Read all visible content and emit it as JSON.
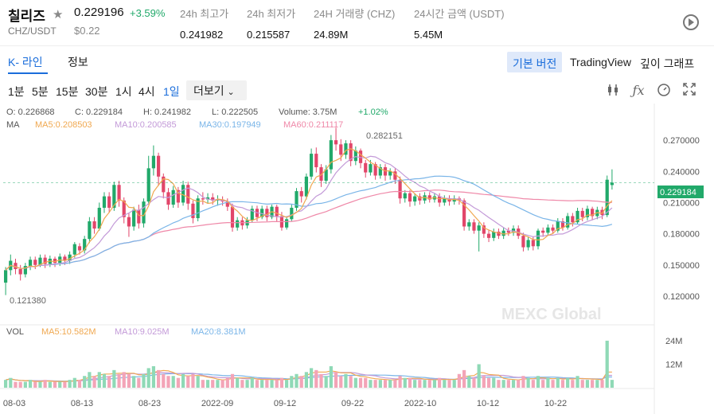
{
  "header": {
    "name": "칠리즈",
    "pair": "CHZ/USDT",
    "price": "0.229196",
    "change": "+3.59%",
    "fiat_price": "$0.22",
    "stats": [
      {
        "label": "24h 최고가",
        "value": "0.241982"
      },
      {
        "label": "24h 최저가",
        "value": "0.215587"
      },
      {
        "label": "24H 거래량 (CHZ)",
        "value": "24.89M"
      },
      {
        "label": "24시간 금액 (USDT)",
        "value": "5.45M"
      }
    ]
  },
  "tabs": {
    "kline": "K- 라인",
    "info": "정보"
  },
  "views": {
    "basic": "기본 버전",
    "tradingview": "TradingView",
    "depth": "깊이 그래프"
  },
  "intervals": [
    "1분",
    "5분",
    "15분",
    "30분",
    "1시",
    "4시",
    "1일"
  ],
  "active_interval": "1일",
  "more_label": "더보기",
  "ohlc": {
    "open": "O: 0.226868",
    "close": "C: 0.229184",
    "high": "H: 0.241982",
    "low": "L: 0.222505",
    "volume": "Volume: 3.75M",
    "change": "+1.02%"
  },
  "ma": {
    "label": "MA",
    "ma5": "MA5:0.208503",
    "ma10": "MA10:0.200585",
    "ma30": "MA30:0.197949",
    "ma60": "MA60:0.211117"
  },
  "vol": {
    "label": "VOL",
    "ma5": "MA5:10.582M",
    "ma10": "MA10:9.025M",
    "ma20": "MA20:8.381M"
  },
  "chart_data": {
    "type": "candlestick",
    "price_axis": {
      "ticks": [
        "0.270000",
        "0.240000",
        "0.210000",
        "0.180000",
        "0.150000",
        "0.120000"
      ],
      "values": [
        0.27,
        0.24,
        0.21,
        0.18,
        0.15,
        0.12
      ]
    },
    "volume_axis": {
      "ticks": [
        "24M",
        "12M"
      ],
      "values": [
        24,
        12
      ]
    },
    "x_ticks": [
      "08-03",
      "08-13",
      "08-23",
      "2022-09",
      "09-12",
      "09-22",
      "2022-10",
      "10-12",
      "10-22"
    ],
    "current_price_label": "0.229184",
    "high_marker": "0.282151",
    "low_marker": "0.121380",
    "watermark": "MEXC Global",
    "candles": [
      [
        0.133,
        0.145,
        0.121,
        0.148,
        4
      ],
      [
        0.145,
        0.154,
        0.14,
        0.16,
        5
      ],
      [
        0.152,
        0.146,
        0.141,
        0.156,
        3
      ],
      [
        0.146,
        0.141,
        0.135,
        0.15,
        3
      ],
      [
        0.141,
        0.149,
        0.138,
        0.152,
        3
      ],
      [
        0.149,
        0.155,
        0.145,
        0.158,
        4
      ],
      [
        0.155,
        0.15,
        0.146,
        0.158,
        3
      ],
      [
        0.15,
        0.157,
        0.148,
        0.16,
        3
      ],
      [
        0.157,
        0.151,
        0.147,
        0.16,
        4
      ],
      [
        0.151,
        0.156,
        0.148,
        0.159,
        3
      ],
      [
        0.156,
        0.152,
        0.148,
        0.158,
        3
      ],
      [
        0.152,
        0.158,
        0.149,
        0.161,
        3
      ],
      [
        0.158,
        0.154,
        0.15,
        0.16,
        3
      ],
      [
        0.154,
        0.16,
        0.151,
        0.163,
        4
      ],
      [
        0.16,
        0.17,
        0.157,
        0.172,
        5
      ],
      [
        0.168,
        0.164,
        0.16,
        0.171,
        4
      ],
      [
        0.164,
        0.175,
        0.161,
        0.178,
        6
      ],
      [
        0.175,
        0.192,
        0.171,
        0.196,
        8
      ],
      [
        0.192,
        0.185,
        0.18,
        0.196,
        6
      ],
      [
        0.185,
        0.205,
        0.183,
        0.21,
        8
      ],
      [
        0.205,
        0.216,
        0.2,
        0.22,
        7
      ],
      [
        0.216,
        0.205,
        0.2,
        0.22,
        6
      ],
      [
        0.205,
        0.227,
        0.202,
        0.23,
        9
      ],
      [
        0.227,
        0.212,
        0.206,
        0.231,
        7
      ],
      [
        0.212,
        0.196,
        0.19,
        0.215,
        8
      ],
      [
        0.196,
        0.187,
        0.177,
        0.2,
        7
      ],
      [
        0.187,
        0.203,
        0.183,
        0.206,
        6
      ],
      [
        0.203,
        0.19,
        0.185,
        0.208,
        5
      ],
      [
        0.19,
        0.211,
        0.186,
        0.214,
        7
      ],
      [
        0.211,
        0.243,
        0.208,
        0.255,
        10
      ],
      [
        0.243,
        0.255,
        0.236,
        0.265,
        11
      ],
      [
        0.255,
        0.235,
        0.226,
        0.258,
        9
      ],
      [
        0.235,
        0.22,
        0.214,
        0.238,
        7
      ],
      [
        0.22,
        0.208,
        0.203,
        0.224,
        6
      ],
      [
        0.208,
        0.222,
        0.205,
        0.226,
        6
      ],
      [
        0.222,
        0.21,
        0.205,
        0.225,
        5
      ],
      [
        0.21,
        0.227,
        0.207,
        0.231,
        7
      ],
      [
        0.227,
        0.209,
        0.203,
        0.23,
        6
      ],
      [
        0.209,
        0.195,
        0.19,
        0.212,
        7
      ],
      [
        0.195,
        0.214,
        0.192,
        0.217,
        6
      ],
      [
        0.214,
        0.213,
        0.208,
        0.22,
        4
      ],
      [
        0.213,
        0.215,
        0.209,
        0.219,
        4
      ],
      [
        0.215,
        0.212,
        0.208,
        0.219,
        4
      ],
      [
        0.212,
        0.213,
        0.207,
        0.217,
        4
      ],
      [
        0.213,
        0.211,
        0.207,
        0.216,
        4
      ],
      [
        0.211,
        0.206,
        0.202,
        0.214,
        5
      ],
      [
        0.206,
        0.186,
        0.182,
        0.209,
        7
      ],
      [
        0.186,
        0.193,
        0.183,
        0.196,
        5
      ],
      [
        0.193,
        0.188,
        0.184,
        0.196,
        4
      ],
      [
        0.188,
        0.193,
        0.185,
        0.196,
        4
      ],
      [
        0.193,
        0.204,
        0.191,
        0.207,
        5
      ],
      [
        0.204,
        0.196,
        0.192,
        0.207,
        4
      ],
      [
        0.196,
        0.204,
        0.194,
        0.207,
        4
      ],
      [
        0.204,
        0.196,
        0.192,
        0.207,
        4
      ],
      [
        0.196,
        0.206,
        0.194,
        0.208,
        4
      ],
      [
        0.206,
        0.197,
        0.192,
        0.208,
        4
      ],
      [
        0.197,
        0.186,
        0.183,
        0.201,
        5
      ],
      [
        0.186,
        0.194,
        0.184,
        0.197,
        4
      ],
      [
        0.194,
        0.205,
        0.192,
        0.208,
        6
      ],
      [
        0.205,
        0.221,
        0.202,
        0.224,
        7
      ],
      [
        0.221,
        0.216,
        0.21,
        0.225,
        6
      ],
      [
        0.216,
        0.235,
        0.213,
        0.238,
        8
      ],
      [
        0.235,
        0.257,
        0.232,
        0.262,
        10
      ],
      [
        0.257,
        0.244,
        0.239,
        0.263,
        9
      ],
      [
        0.244,
        0.231,
        0.225,
        0.247,
        7
      ],
      [
        0.231,
        0.242,
        0.228,
        0.246,
        6
      ],
      [
        0.242,
        0.27,
        0.238,
        0.275,
        11
      ],
      [
        0.27,
        0.266,
        0.26,
        0.282,
        8
      ],
      [
        0.266,
        0.256,
        0.25,
        0.271,
        6
      ],
      [
        0.256,
        0.267,
        0.252,
        0.27,
        7
      ],
      [
        0.267,
        0.25,
        0.245,
        0.27,
        6
      ],
      [
        0.25,
        0.26,
        0.246,
        0.264,
        5
      ],
      [
        0.26,
        0.248,
        0.243,
        0.262,
        5
      ],
      [
        0.248,
        0.239,
        0.234,
        0.251,
        5
      ],
      [
        0.239,
        0.247,
        0.236,
        0.251,
        4
      ],
      [
        0.247,
        0.236,
        0.232,
        0.249,
        4
      ],
      [
        0.236,
        0.244,
        0.233,
        0.247,
        4
      ],
      [
        0.244,
        0.236,
        0.231,
        0.247,
        4
      ],
      [
        0.236,
        0.24,
        0.232,
        0.243,
        4
      ],
      [
        0.24,
        0.232,
        0.228,
        0.243,
        4
      ],
      [
        0.232,
        0.214,
        0.209,
        0.235,
        6
      ],
      [
        0.214,
        0.219,
        0.21,
        0.222,
        5
      ],
      [
        0.219,
        0.211,
        0.206,
        0.222,
        5
      ],
      [
        0.211,
        0.216,
        0.207,
        0.219,
        4
      ],
      [
        0.216,
        0.212,
        0.208,
        0.219,
        4
      ],
      [
        0.212,
        0.217,
        0.209,
        0.22,
        4
      ],
      [
        0.217,
        0.213,
        0.21,
        0.22,
        4
      ],
      [
        0.213,
        0.216,
        0.21,
        0.219,
        4
      ],
      [
        0.216,
        0.21,
        0.206,
        0.219,
        5
      ],
      [
        0.21,
        0.214,
        0.207,
        0.217,
        4
      ],
      [
        0.214,
        0.211,
        0.207,
        0.217,
        4
      ],
      [
        0.211,
        0.214,
        0.208,
        0.217,
        4
      ],
      [
        0.214,
        0.212,
        0.208,
        0.216,
        7
      ],
      [
        0.212,
        0.187,
        0.183,
        0.214,
        9
      ],
      [
        0.187,
        0.191,
        0.183,
        0.194,
        6
      ],
      [
        0.191,
        0.183,
        0.18,
        0.194,
        5
      ],
      [
        0.183,
        0.188,
        0.163,
        0.191,
        12
      ],
      [
        0.188,
        0.18,
        0.176,
        0.191,
        6
      ],
      [
        0.18,
        0.176,
        0.172,
        0.184,
        5
      ],
      [
        0.176,
        0.182,
        0.173,
        0.185,
        5
      ],
      [
        0.182,
        0.178,
        0.175,
        0.185,
        4
      ],
      [
        0.178,
        0.183,
        0.175,
        0.186,
        4
      ],
      [
        0.183,
        0.181,
        0.178,
        0.186,
        4
      ],
      [
        0.181,
        0.185,
        0.178,
        0.188,
        4
      ],
      [
        0.185,
        0.178,
        0.175,
        0.188,
        4
      ],
      [
        0.178,
        0.167,
        0.163,
        0.181,
        6
      ],
      [
        0.167,
        0.174,
        0.164,
        0.177,
        5
      ],
      [
        0.174,
        0.168,
        0.164,
        0.177,
        4
      ],
      [
        0.168,
        0.183,
        0.165,
        0.185,
        6
      ],
      [
        0.183,
        0.181,
        0.177,
        0.186,
        4
      ],
      [
        0.181,
        0.186,
        0.179,
        0.189,
        5
      ],
      [
        0.186,
        0.183,
        0.18,
        0.189,
        4
      ],
      [
        0.183,
        0.192,
        0.181,
        0.195,
        5
      ],
      [
        0.192,
        0.186,
        0.183,
        0.195,
        4
      ],
      [
        0.186,
        0.197,
        0.184,
        0.2,
        5
      ],
      [
        0.197,
        0.191,
        0.187,
        0.2,
        4
      ],
      [
        0.191,
        0.202,
        0.189,
        0.205,
        6
      ],
      [
        0.202,
        0.196,
        0.192,
        0.205,
        4
      ],
      [
        0.196,
        0.204,
        0.193,
        0.207,
        4
      ],
      [
        0.204,
        0.197,
        0.193,
        0.206,
        4
      ],
      [
        0.197,
        0.203,
        0.194,
        0.206,
        4
      ],
      [
        0.203,
        0.198,
        0.194,
        0.206,
        4
      ],
      [
        0.198,
        0.232,
        0.196,
        0.236,
        24
      ],
      [
        0.226868,
        0.229184,
        0.222505,
        0.241982,
        4
      ]
    ]
  }
}
